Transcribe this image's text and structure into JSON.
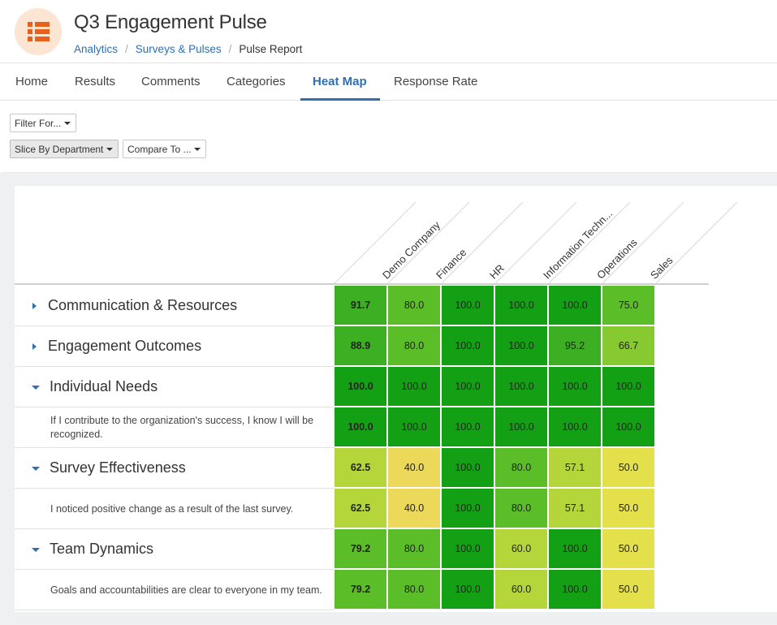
{
  "header": {
    "app_icon": "list-icon",
    "title": "Q3 Engagement Pulse",
    "breadcrumb": {
      "analytics": "Analytics",
      "surveys": "Surveys & Pulses",
      "current": "Pulse Report",
      "separator": "/"
    }
  },
  "tabs": [
    {
      "label": "Home"
    },
    {
      "label": "Results"
    },
    {
      "label": "Comments"
    },
    {
      "label": "Categories"
    },
    {
      "label": "Heat Map",
      "active": true
    },
    {
      "label": "Response Rate"
    }
  ],
  "filters": {
    "filter_for": "Filter For...",
    "slice_by": "Slice By Department",
    "compare_to": "Compare To ..."
  },
  "columns": [
    "Demo Company",
    "Finance",
    "HR",
    "Information Techn...",
    "Operations",
    "Sales"
  ],
  "rows": [
    {
      "type": "category",
      "label": "Communication & Resources",
      "expanded": false,
      "values": [
        "91.7",
        "80.0",
        "100.0",
        "100.0",
        "100.0",
        "75.0"
      ]
    },
    {
      "type": "category",
      "label": "Engagement Outcomes",
      "expanded": false,
      "values": [
        "88.9",
        "80.0",
        "100.0",
        "100.0",
        "95.2",
        "66.7"
      ]
    },
    {
      "type": "category",
      "label": "Individual Needs",
      "expanded": true,
      "values": [
        "100.0",
        "100.0",
        "100.0",
        "100.0",
        "100.0",
        "100.0"
      ]
    },
    {
      "type": "question",
      "label": "If I contribute to the organization's success, I know I will be recognized.",
      "values": [
        "100.0",
        "100.0",
        "100.0",
        "100.0",
        "100.0",
        "100.0"
      ]
    },
    {
      "type": "category",
      "label": "Survey Effectiveness",
      "expanded": true,
      "values": [
        "62.5",
        "40.0",
        "100.0",
        "80.0",
        "57.1",
        "50.0"
      ]
    },
    {
      "type": "question",
      "label": "I noticed positive change as a result of the last survey.",
      "values": [
        "62.5",
        "40.0",
        "100.0",
        "80.0",
        "57.1",
        "50.0"
      ]
    },
    {
      "type": "category",
      "label": "Team Dynamics",
      "expanded": true,
      "values": [
        "79.2",
        "80.0",
        "100.0",
        "60.0",
        "100.0",
        "50.0"
      ]
    },
    {
      "type": "question",
      "label": "Goals and accountabilities are clear to everyone in my team.",
      "values": [
        "79.2",
        "80.0",
        "100.0",
        "60.0",
        "100.0",
        "50.0"
      ]
    }
  ],
  "colors": {
    "accent": "#2f6fb0",
    "scale_100": "#14a014",
    "scale_90": "#3cb022",
    "scale_80": "#5bbd28",
    "scale_70": "#86c930",
    "scale_60": "#b5d63a",
    "scale_50": "#e4e04c",
    "scale_40": "#ecd95a"
  }
}
